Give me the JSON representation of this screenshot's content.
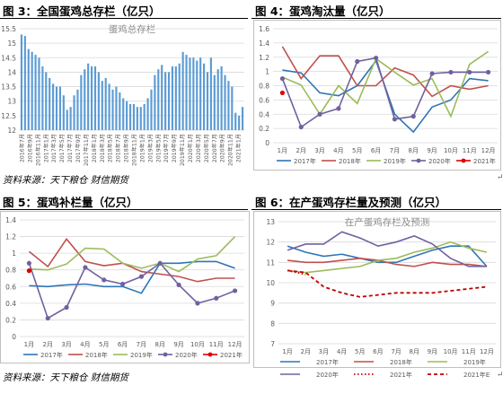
{
  "figures": [
    {
      "title": "图 3：全国蛋鸡总存栏（亿只）"
    },
    {
      "title": "图 4：蛋鸡淘汰量（亿只）"
    },
    {
      "title": "图 5：蛋鸡补栏量（亿只）"
    },
    {
      "title": "图 6：在产蛋鸡存栏量及预测（亿只）"
    }
  ],
  "sources": [
    {
      "text": "资料来源：天下粮仓 财信期货"
    },
    {
      "text": "资料来源：天下粮仓 财信期货"
    }
  ],
  "chart_data": [
    {
      "type": "bar",
      "title": "蛋鸡总存栏",
      "color": "#5b9bd5",
      "ylim": [
        12,
        15.5
      ],
      "yticks": [
        12,
        12.5,
        13,
        13.5,
        14,
        14.5,
        15,
        15.5
      ],
      "tick_labels": [
        "2016年7月",
        "2016年9月",
        "2016年11月",
        "2017年1月",
        "2017年3月",
        "2017年5月",
        "2017年7月",
        "2017年9月",
        "2017年11月",
        "2018年1月",
        "2018年3月",
        "2018年5月",
        "2018年7月",
        "2018年9月",
        "2018年11月",
        "2019年1月",
        "2019年3月",
        "2019年5月",
        "2019年7月",
        "2019年9月",
        "2019年11月",
        "2020年1月",
        "2020年3月",
        "2020年5月",
        "2020年7月",
        "2020年9月",
        "2020年11月",
        "2021年1月"
      ],
      "values": [
        15.3,
        15.25,
        14.8,
        14.7,
        14.6,
        14.5,
        14.2,
        14.0,
        13.8,
        13.6,
        13.5,
        13.5,
        13.2,
        12.7,
        12.8,
        13.2,
        13.4,
        13.9,
        14.1,
        14.3,
        14.2,
        14.2,
        14.0,
        13.7,
        13.8,
        13.6,
        13.4,
        13.5,
        13.3,
        13.1,
        13.0,
        12.9,
        12.9,
        12.8,
        12.8,
        12.9,
        13.1,
        13.4,
        13.9,
        14.1,
        14.25,
        14.0,
        14.0,
        14.2,
        14.2,
        14.3,
        14.7,
        14.6,
        14.5,
        14.5,
        14.4,
        14.5,
        14.3,
        14.0,
        14.5,
        13.9,
        14.1,
        14.2,
        13.9,
        13.7,
        13.5,
        12.6,
        12.5,
        12.8
      ]
    },
    {
      "type": "line",
      "title": "",
      "ylim": [
        0,
        1.6
      ],
      "yticks": [
        0,
        0.2,
        0.4,
        0.6,
        0.8,
        1,
        1.2,
        1.4,
        1.6
      ],
      "categories": [
        "1月",
        "2月",
        "3月",
        "4月",
        "5月",
        "6月",
        "7月",
        "8月",
        "9月",
        "10月",
        "11月",
        "12月"
      ],
      "series": [
        {
          "name": "2017年",
          "color": "#2e75b6",
          "marker": false,
          "values": [
            1.02,
            0.98,
            0.7,
            0.66,
            0.8,
            1.15,
            0.4,
            0.15,
            0.5,
            0.6,
            0.9,
            0.87
          ]
        },
        {
          "name": "2018年",
          "color": "#c0504d",
          "marker": false,
          "values": [
            1.35,
            0.9,
            1.22,
            1.22,
            0.8,
            0.8,
            1.05,
            0.95,
            0.65,
            0.8,
            0.75,
            0.8
          ]
        },
        {
          "name": "2019年",
          "color": "#9bbb59",
          "marker": false,
          "values": [
            0.92,
            0.81,
            0.4,
            0.8,
            0.55,
            1.18,
            0.99,
            0.81,
            0.9,
            0.37,
            1.1,
            1.28
          ]
        },
        {
          "name": "2020年",
          "color": "#7160a0",
          "marker": true,
          "values": [
            0.9,
            0.22,
            0.4,
            0.48,
            1.14,
            1.19,
            0.33,
            0.37,
            0.97,
            0.99,
            0.99,
            0.99
          ]
        },
        {
          "name": "2021年",
          "color": "#e00000",
          "marker": true,
          "values": [
            0.7,
            null,
            null,
            null,
            null,
            null,
            null,
            null,
            null,
            null,
            null,
            null
          ]
        }
      ]
    },
    {
      "type": "line",
      "title": "",
      "ylim": [
        0,
        1.4
      ],
      "yticks": [
        0,
        0.2,
        0.4,
        0.6,
        0.8,
        1,
        1.2,
        1.4
      ],
      "categories": [
        "1月",
        "2月",
        "3月",
        "4月",
        "5月",
        "6月",
        "7月",
        "8月",
        "9月",
        "10月",
        "11月",
        "12月"
      ],
      "series": [
        {
          "name": "2017年",
          "color": "#2e75b6",
          "marker": false,
          "values": [
            0.61,
            0.6,
            0.62,
            0.63,
            0.6,
            0.6,
            0.52,
            0.88,
            0.88,
            0.9,
            0.9,
            0.82
          ]
        },
        {
          "name": "2018年",
          "color": "#c0504d",
          "marker": false,
          "values": [
            1.02,
            0.84,
            1.17,
            0.9,
            0.85,
            0.88,
            0.78,
            0.75,
            0.72,
            0.66,
            0.7,
            0.7
          ]
        },
        {
          "name": "2019年",
          "color": "#9bbb59",
          "marker": false,
          "values": [
            0.81,
            0.8,
            0.87,
            1.06,
            1.05,
            0.88,
            0.82,
            0.88,
            0.78,
            0.93,
            0.97,
            1.2
          ]
        },
        {
          "name": "2020年",
          "color": "#7160a0",
          "marker": true,
          "values": [
            0.88,
            0.22,
            0.35,
            0.83,
            0.68,
            0.63,
            0.72,
            0.88,
            0.62,
            0.4,
            0.46,
            0.55
          ]
        },
        {
          "name": "2021年",
          "color": "#e00000",
          "marker": true,
          "values": [
            0.79,
            null,
            null,
            null,
            null,
            null,
            null,
            null,
            null,
            null,
            null,
            null
          ]
        }
      ]
    },
    {
      "type": "line",
      "title": "在产蛋鸡存栏及预测",
      "ylim": [
        7,
        13
      ],
      "yticks": [
        7,
        8,
        9,
        10,
        11,
        12,
        13
      ],
      "categories": [
        "1月",
        "2月",
        "3月",
        "4月",
        "5月",
        "6月",
        "7月",
        "8月",
        "9月",
        "10月",
        "11月",
        "12月"
      ],
      "series": [
        {
          "name": "2017年",
          "color": "#2e75b6",
          "dash": "",
          "values": [
            11.8,
            11.5,
            11.3,
            11.4,
            11.2,
            11.0,
            11.0,
            11.3,
            11.6,
            11.8,
            11.8,
            10.8
          ]
        },
        {
          "name": "2018年",
          "color": "#c0504d",
          "dash": "",
          "values": [
            11.1,
            11.0,
            11.0,
            11.1,
            11.2,
            11.1,
            10.9,
            10.8,
            11.0,
            10.9,
            10.9,
            10.8
          ]
        },
        {
          "name": "2019年",
          "color": "#9bbb59",
          "dash": "",
          "values": [
            10.6,
            10.5,
            10.6,
            10.7,
            10.8,
            11.1,
            11.2,
            11.5,
            11.7,
            12.0,
            11.7,
            11.5
          ]
        },
        {
          "name": "2020年",
          "color": "#7160a0",
          "dash": "",
          "values": [
            11.6,
            11.9,
            11.9,
            12.5,
            12.2,
            11.8,
            12.0,
            12.3,
            11.9,
            11.2,
            10.8,
            10.8
          ]
        },
        {
          "name": "2021年",
          "color": "#c00000",
          "dash": "1.5 2.5",
          "values": [
            10.6,
            10.4,
            null,
            null,
            null,
            null,
            null,
            null,
            null,
            null,
            null,
            null
          ]
        },
        {
          "name": "2021年E",
          "color": "#c00000",
          "dash": "4 3",
          "values": [
            10.6,
            10.5,
            9.8,
            9.5,
            9.3,
            9.4,
            9.5,
            9.5,
            9.5,
            9.6,
            9.7,
            9.8
          ]
        }
      ]
    }
  ]
}
